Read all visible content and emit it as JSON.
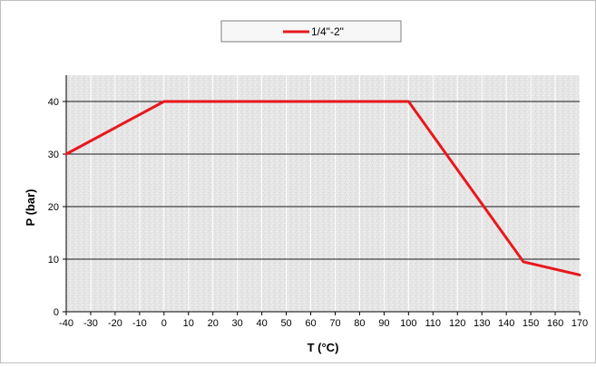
{
  "chart_data": {
    "type": "line",
    "title": "",
    "xlabel": "T (°C)",
    "ylabel": "P (bar)",
    "xlim": [
      -40,
      170
    ],
    "ylim": [
      0,
      45
    ],
    "xticks": [
      -40,
      -30,
      -20,
      -10,
      0,
      10,
      20,
      30,
      40,
      50,
      60,
      70,
      80,
      90,
      100,
      110,
      120,
      130,
      140,
      150,
      160,
      170
    ],
    "yticks": [
      0,
      10,
      20,
      30,
      40
    ],
    "grid": true,
    "legend_position": "top-center",
    "series": [
      {
        "name": "1/4\"-2\"",
        "color": "#e8181e",
        "x": [
          -40,
          0,
          100,
          147,
          170
        ],
        "y": [
          30,
          40,
          40,
          9.5,
          7
        ]
      }
    ]
  }
}
